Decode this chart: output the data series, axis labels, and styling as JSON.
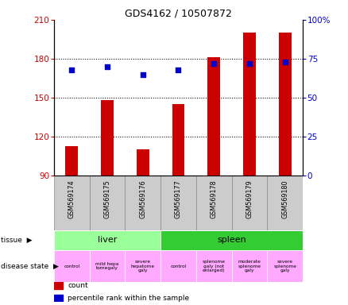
{
  "title": "GDS4162 / 10507872",
  "samples": [
    "GSM569174",
    "GSM569175",
    "GSM569176",
    "GSM569177",
    "GSM569178",
    "GSM569179",
    "GSM569180"
  ],
  "bar_values": [
    113,
    148,
    110,
    145,
    181,
    200,
    200
  ],
  "bar_bottom": 90,
  "percentile_values": [
    68,
    70,
    65,
    68,
    72,
    72,
    73
  ],
  "ylim_left": [
    90,
    210
  ],
  "ylim_right": [
    0,
    100
  ],
  "yticks_left": [
    90,
    120,
    150,
    180,
    210
  ],
  "yticks_right": [
    0,
    25,
    50,
    75,
    100
  ],
  "right_tick_labels": [
    "0",
    "25",
    "50",
    "75",
    "100%"
  ],
  "bar_color": "#cc0000",
  "dot_color": "#0000cc",
  "tissue_groups": [
    {
      "label": "liver",
      "start": 0,
      "end": 3,
      "color": "#99ff99"
    },
    {
      "label": "spleen",
      "start": 3,
      "end": 7,
      "color": "#33cc33"
    }
  ],
  "disease_labels": [
    {
      "label": "control",
      "start": 0,
      "end": 1,
      "color": "#ffaaff"
    },
    {
      "label": "mild hepa\ntomegaly",
      "start": 1,
      "end": 2,
      "color": "#ffaaff"
    },
    {
      "label": "severe\nhepatome\ngaly",
      "start": 2,
      "end": 3,
      "color": "#ffaaff"
    },
    {
      "label": "control",
      "start": 3,
      "end": 4,
      "color": "#ffaaff"
    },
    {
      "label": "splenome\ngaly (not\nenlarged)",
      "start": 4,
      "end": 5,
      "color": "#ffaaff"
    },
    {
      "label": "moderate\nsplenome\ngaly",
      "start": 5,
      "end": 6,
      "color": "#ffaaff"
    },
    {
      "label": "severe\nsplenome\ngaly",
      "start": 6,
      "end": 7,
      "color": "#ffaaff"
    }
  ],
  "tick_label_color_left": "#cc0000",
  "tick_label_color_right": "#0000cc",
  "xlabel_bg": "#cccccc",
  "xlabel_border": "#888888",
  "grid_lines": [
    120,
    150,
    180
  ],
  "legend_items": [
    {
      "label": "count",
      "color": "#cc0000"
    },
    {
      "label": "percentile rank within the sample",
      "color": "#0000cc"
    }
  ],
  "row_label_arrow": "▶"
}
